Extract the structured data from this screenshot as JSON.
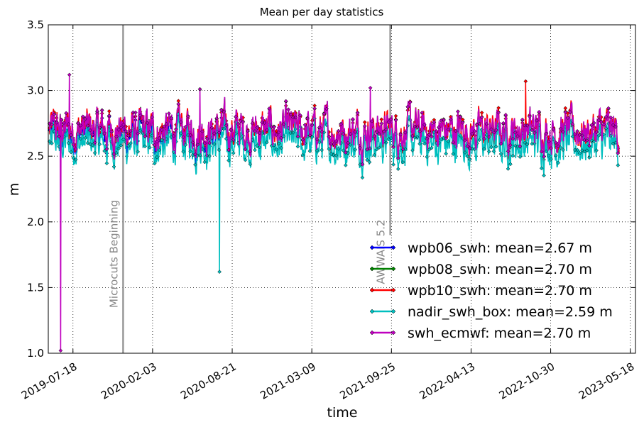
{
  "chart_data": {
    "type": "line",
    "title": "Mean per day statistics",
    "xlabel": "time",
    "ylabel": "m",
    "x_ticks": [
      "2019-07-18",
      "2020-02-03",
      "2020-08-21",
      "2021-03-09",
      "2021-09-25",
      "2022-04-13",
      "2022-10-30",
      "2023-05-18"
    ],
    "y_ticks": [
      "1.0",
      "1.5",
      "2.0",
      "2.5",
      "3.0",
      "3.5"
    ],
    "xlim": [
      "2019-05-17",
      "2023-05-31"
    ],
    "ylim": [
      1.0,
      3.5
    ],
    "grid": true,
    "legend_position": "lower right",
    "annotations": [
      {
        "label": "Microcuts Beginning",
        "date": "2019-11-21",
        "color": "#999999"
      },
      {
        "label": "AWWAIS 5.2",
        "date": "2021-09-22",
        "color": "#999999"
      }
    ],
    "series": [
      {
        "name": "wpb06_swh: mean=2.67 m",
        "color": "#0000ff",
        "start": "2019-05-20",
        "end": "2020-09-01",
        "mean": 2.67,
        "amp": 0.17,
        "events": []
      },
      {
        "name": "wpb08_swh: mean=2.70 m",
        "color": "#008000",
        "start": "2019-05-20",
        "end": "2023-04-20",
        "mean": 2.7,
        "amp": 0.17,
        "events": []
      },
      {
        "name": "wpb10_swh: mean=2.70 m",
        "color": "#ff0000",
        "start": "2019-05-20",
        "end": "2023-04-20",
        "mean": 2.7,
        "amp": 0.17,
        "events": [
          [
            "2022-08-28",
            3.07
          ]
        ]
      },
      {
        "name": "nadir_swh_box: mean=2.59 m",
        "color": "#00bfbf",
        "start": "2019-05-20",
        "end": "2023-04-20",
        "mean": 2.59,
        "amp": 0.17,
        "events": [
          [
            "2020-07-20",
            1.62
          ]
        ]
      },
      {
        "name": "swh_ecmwf: mean=2.70 m",
        "color": "#bf00bf",
        "start": "2019-05-20",
        "end": "2023-04-20",
        "mean": 2.7,
        "amp": 0.17,
        "events": [
          [
            "2019-06-17",
            1.02
          ],
          [
            "2019-07-09",
            3.12
          ],
          [
            "2020-06-01",
            3.01
          ],
          [
            "2021-08-03",
            3.02
          ]
        ]
      }
    ]
  }
}
